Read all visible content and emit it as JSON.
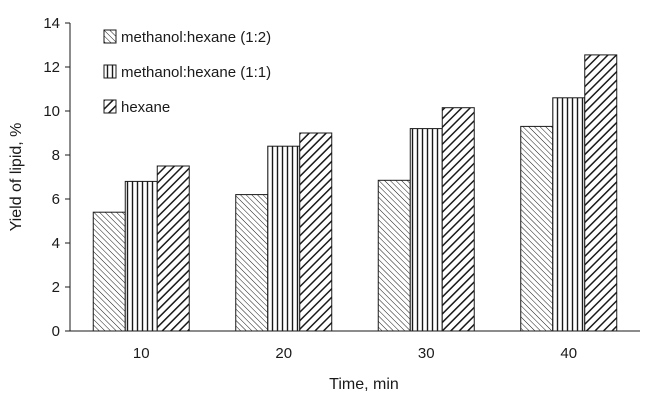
{
  "chart_data": {
    "type": "bar",
    "title": "",
    "xlabel": "Time, min",
    "ylabel": "Yield of lipid, %",
    "categories": [
      "10",
      "20",
      "30",
      "40"
    ],
    "ylim": [
      0,
      14
    ],
    "yticks": [
      0,
      2,
      4,
      6,
      8,
      10,
      12,
      14
    ],
    "grid": false,
    "legend_position": "top-left",
    "series": [
      {
        "name": "methanol:hexane (1:2)",
        "pattern": "fine-diagonal-hatch",
        "values": [
          5.4,
          6.2,
          6.85,
          9.3
        ]
      },
      {
        "name": "methanol:hexane (1:1)",
        "pattern": "vertical-lines",
        "values": [
          6.8,
          8.4,
          9.2,
          10.6
        ]
      },
      {
        "name": "hexane",
        "pattern": "bold-diagonal-hatch",
        "values": [
          7.5,
          9.0,
          10.15,
          12.55
        ]
      }
    ],
    "colors": {
      "stroke": "#1a1a1a",
      "fill": "#ffffff",
      "hatch": "#1a1a1a"
    }
  }
}
